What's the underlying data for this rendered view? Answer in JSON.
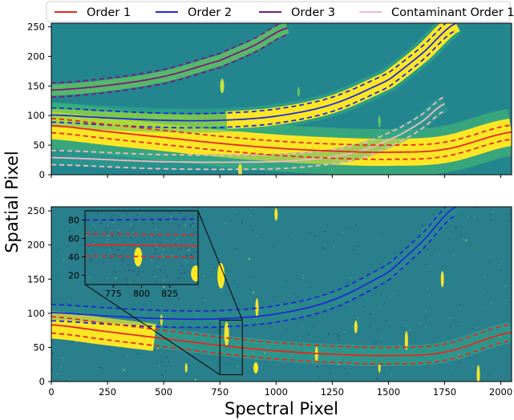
{
  "chart_data": {
    "type": "line",
    "xlabel": "Spectral Pixel",
    "ylabel": "Spatial Pixel",
    "xlim": [
      0,
      2048
    ],
    "ylim": [
      0,
      256
    ],
    "x_ticks": [
      0,
      250,
      500,
      750,
      1000,
      1250,
      1500,
      1750,
      2000
    ],
    "y_ticks": [
      0,
      50,
      100,
      150,
      200,
      250
    ],
    "legend": {
      "position": "top",
      "entries": [
        {
          "name": "Order 1",
          "color": "#e8281c"
        },
        {
          "name": "Order 2",
          "color": "#1f2bd6"
        },
        {
          "name": "Order 3",
          "color": "#7b1a7d"
        },
        {
          "name": "Contaminant Order 1",
          "color": "#f2b8c6"
        }
      ]
    },
    "panels": [
      {
        "panel": "top",
        "background": "simulated trace image",
        "series": [
          {
            "name": "Order 1",
            "color": "#e8281c",
            "x": [
              0,
              250,
              500,
              750,
              1000,
              1250,
              1500,
              1750,
              2048
            ],
            "center": [
              83,
              73,
              63,
              53,
              45,
              40,
              38,
              43,
              72
            ],
            "halfwidth": 12
          },
          {
            "name": "Order 2",
            "color": "#1f2bd6",
            "x": [
              0,
              250,
              500,
              750,
              1000,
              1250,
              1500,
              1650,
              1800
            ],
            "center": [
              101,
              96,
              92,
              92,
              99,
              119,
              160,
              205,
              256
            ],
            "halfwidth": 12
          },
          {
            "name": "Order 3",
            "color": "#7b1a7d",
            "x": [
              0,
              250,
              500,
              750,
              900,
              1050
            ],
            "center": [
              143,
              151,
              166,
              193,
              218,
              248
            ],
            "halfwidth": 12
          },
          {
            "name": "Contaminant Order 1",
            "color": "#f2b8c6",
            "x": [
              0,
              500,
              1000,
              1250,
              1400,
              1550,
              1650,
              1750
            ],
            "center": [
              29,
              22,
              22,
              30,
              43,
              67,
              90,
              120
            ],
            "halfwidth": 12
          }
        ]
      },
      {
        "panel": "bottom",
        "background": "observed detector image",
        "series": [
          {
            "name": "Order 1",
            "color": "#e8281c",
            "x": [
              0,
              250,
              500,
              750,
              1000,
              1250,
              1500,
              1750,
              2048
            ],
            "center": [
              83,
              73,
              63,
              53,
              45,
              40,
              38,
              43,
              72
            ],
            "halfwidth": 12
          },
          {
            "name": "Order 2",
            "color": "#1f2bd6",
            "x": [
              0,
              250,
              500,
              750,
              1000,
              1250,
              1500,
              1650,
              1800
            ],
            "center": [
              101,
              96,
              92,
              92,
              99,
              119,
              160,
              205,
              256
            ],
            "halfwidth": 12
          }
        ],
        "inset": {
          "xlim": [
            750,
            850
          ],
          "ylim": [
            10,
            90
          ],
          "x_ticks": [
            775,
            800,
            825
          ],
          "y_ticks": [
            20,
            40,
            60,
            80
          ],
          "series": [
            {
              "name": "Order 1",
              "color": "#e8281c",
              "x": [
                750,
                850
              ],
              "center": [
                53,
                52
              ],
              "halfwidth": 12
            },
            {
              "name": "Order 2",
              "color": "#1f2bd6",
              "x": [
                750,
                850
              ],
              "center": [
                92,
                93
              ],
              "halfwidth": 12
            }
          ]
        }
      }
    ]
  }
}
